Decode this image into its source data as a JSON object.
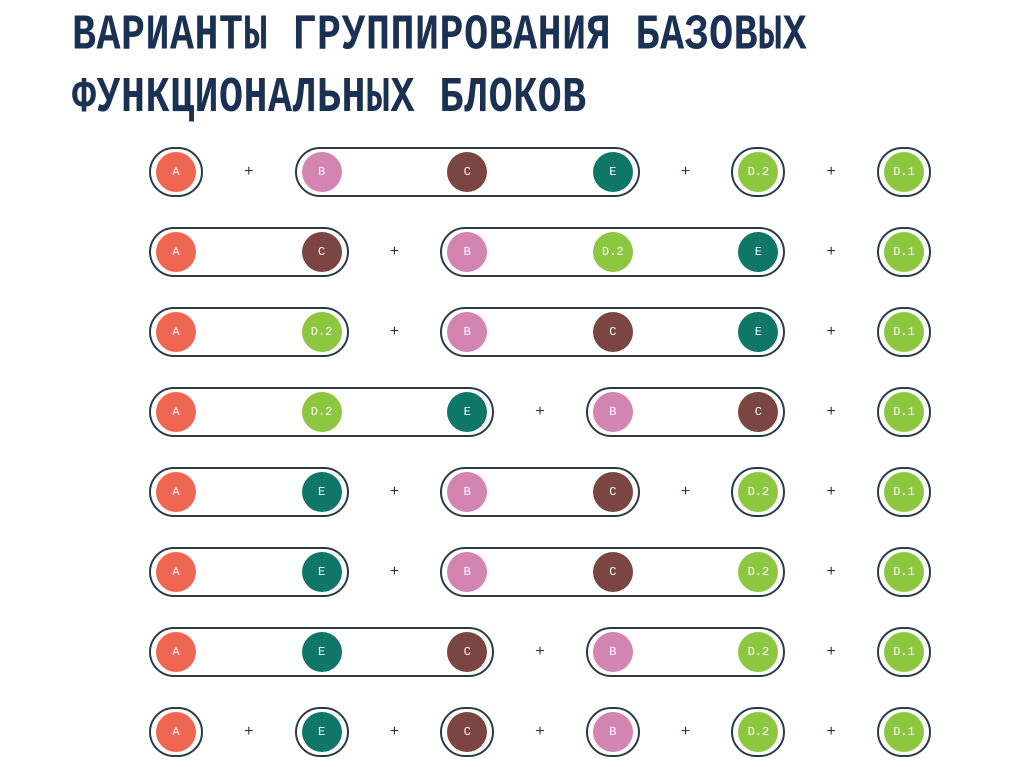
{
  "title": {
    "line1": "ВАРИАНТЫ ГРУППИРОВАНИЯ БАЗОВЫХ",
    "line2": "ФУНКЦИОНАЛЬНЫХ БЛОКОВ"
  },
  "plus_sign": "+",
  "colors": {
    "A": "#ef6651",
    "B": "#d384b0",
    "C": "#7b4642",
    "E": "#0f7767",
    "D.2": "#8dc63f",
    "D.1": "#8dc63f"
  },
  "rows": [
    [
      [
        "A"
      ],
      [
        "B",
        "C",
        "E"
      ],
      [
        "D.2"
      ],
      [
        "D.1"
      ]
    ],
    [
      [
        "A",
        "C"
      ],
      [
        "B",
        "D.2",
        "E"
      ],
      [
        "D.1"
      ]
    ],
    [
      [
        "A",
        "D.2"
      ],
      [
        "B",
        "C",
        "E"
      ],
      [
        "D.1"
      ]
    ],
    [
      [
        "A",
        "D.2",
        "E"
      ],
      [
        "B",
        "C"
      ],
      [
        "D.1"
      ]
    ],
    [
      [
        "A",
        "E"
      ],
      [
        "B",
        "C"
      ],
      [
        "D.2"
      ],
      [
        "D.1"
      ]
    ],
    [
      [
        "A",
        "E"
      ],
      [
        "B",
        "C",
        "D.2"
      ],
      [
        "D.1"
      ]
    ],
    [
      [
        "A",
        "E",
        "C"
      ],
      [
        "B",
        "D.2"
      ],
      [
        "D.1"
      ]
    ],
    [
      [
        "A"
      ],
      [
        "E"
      ],
      [
        "C"
      ],
      [
        "B"
      ],
      [
        "D.2"
      ],
      [
        "D.1"
      ]
    ]
  ]
}
